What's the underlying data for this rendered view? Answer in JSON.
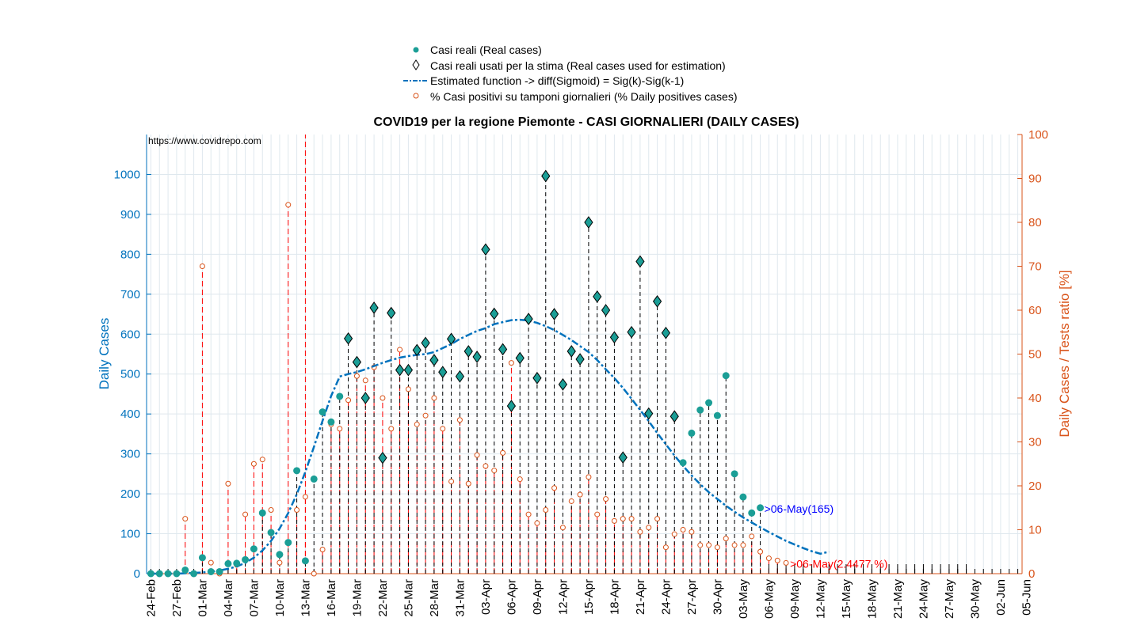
{
  "chart_data": {
    "type": "scatter",
    "title": "COVID19 per la regione Piemonte - CASI GIORNALIERI (DAILY CASES)",
    "source_note": "https://www.covidrepo.com",
    "ylabel_left": "Daily Cases",
    "ylabel_right": "Daily Cases / Tests ratio [%]",
    "ylim_left": [
      0,
      1100
    ],
    "ylim_right": [
      0,
      100
    ],
    "yticks_left": [
      0,
      100,
      200,
      300,
      400,
      500,
      600,
      700,
      800,
      900,
      1000
    ],
    "yticks_right": [
      0,
      10,
      20,
      30,
      40,
      50,
      60,
      70,
      80,
      90,
      100
    ],
    "x_start_label": "24-Feb",
    "x_days": 102,
    "x_tick_labels": [
      "24-Feb",
      "27-Feb",
      "01-Mar",
      "04-Mar",
      "07-Mar",
      "10-Mar",
      "13-Mar",
      "16-Mar",
      "19-Mar",
      "22-Mar",
      "25-Mar",
      "28-Mar",
      "31-Mar",
      "03-Apr",
      "06-Apr",
      "09-Apr",
      "12-Apr",
      "15-Apr",
      "18-Apr",
      "21-Apr",
      "24-Apr",
      "27-Apr",
      "30-Apr",
      "03-May",
      "06-May",
      "09-May",
      "12-May",
      "15-May",
      "18-May",
      "21-May",
      "24-May",
      "27-May",
      "30-May",
      "02-Jun",
      "05-Jun"
    ],
    "grid": true,
    "legend_position": "top-center",
    "series": [
      {
        "name": "Casi reali (Real cases)",
        "color": "#1b9e96",
        "values": [
          0,
          0,
          0,
          0,
          9,
          0,
          40,
          5,
          5,
          25,
          26,
          35,
          62,
          152,
          103,
          48,
          78,
          258,
          32,
          237,
          405,
          380,
          444,
          589,
          530,
          440,
          666,
          290,
          653,
          510,
          510,
          560,
          578,
          535,
          505,
          588,
          494,
          557,
          543,
          812,
          651,
          562,
          420,
          540,
          638,
          490,
          996,
          650,
          474,
          557,
          537,
          880,
          694,
          660,
          592,
          291,
          605,
          782,
          401,
          682,
          603,
          394,
          278,
          352,
          410,
          428,
          396,
          496,
          250,
          192,
          152,
          165
        ]
      },
      {
        "name": "Casi reali usati per la stima (Real cases used for estimation)",
        "color": "#000000",
        "used_indices": [
          23,
          24,
          25,
          26,
          27,
          28,
          29,
          30,
          31,
          32,
          33,
          34,
          35,
          36,
          37,
          38,
          39,
          40,
          41,
          42,
          43,
          44,
          45,
          46,
          47,
          48,
          49,
          50,
          51,
          52,
          53,
          54,
          55,
          56,
          57,
          58,
          59,
          60,
          61
        ]
      },
      {
        "name": "Estimated function -> diff(Sigmoid) = Sig(k)-Sig(k-1)",
        "color": "#0072bd",
        "values": [
          0,
          0,
          0,
          0,
          1,
          2,
          3,
          5,
          8,
          12,
          18,
          27,
          40,
          58,
          82,
          113,
          152,
          199,
          255,
          318,
          383,
          445,
          494,
          500,
          505,
          512,
          520,
          528,
          535,
          541,
          545,
          548,
          550,
          555,
          565,
          575,
          588,
          598,
          608,
          615,
          625,
          630,
          635,
          636,
          634,
          628,
          620,
          610,
          598,
          585,
          570,
          555,
          535,
          512,
          490,
          465,
          438,
          410,
          382,
          352,
          324,
          296,
          270,
          246,
          224,
          204,
          187,
          170,
          155,
          141,
          128,
          116,
          104,
          93,
          82,
          73,
          64,
          56,
          50,
          55
        ]
      },
      {
        "name": "% Casi positivi su tamponi giornalieri (% Daily positives cases)",
        "color": "#d95319",
        "values": [
          0,
          0,
          0,
          0,
          12.5,
          0,
          70,
          2.5,
          0,
          20.5,
          2,
          13.5,
          25,
          26,
          14.5,
          2.5,
          84,
          14.5,
          17.5,
          0,
          5.5,
          34,
          33,
          39.5,
          45,
          44,
          47,
          40,
          33,
          51,
          42,
          34,
          36,
          40,
          33,
          21,
          35,
          20.5,
          27,
          24.5,
          23.5,
          27.5,
          48,
          21.5,
          13.5,
          11.5,
          14.5,
          19.5,
          10.5,
          16.5,
          18,
          22,
          13.5,
          17,
          12,
          12.5,
          12.5,
          9.5,
          10.5,
          12.5,
          6,
          9,
          10,
          9.5,
          6.5,
          6.5,
          6,
          8,
          6.5,
          6.5,
          8.5,
          5,
          3.5,
          3,
          2.4477
        ]
      }
    ],
    "annotations": [
      {
        "text": ">06-May(165)",
        "color": "#0000ff"
      },
      {
        "text": ">06-May(2.4477 %)",
        "color": "#ff0000"
      }
    ]
  }
}
